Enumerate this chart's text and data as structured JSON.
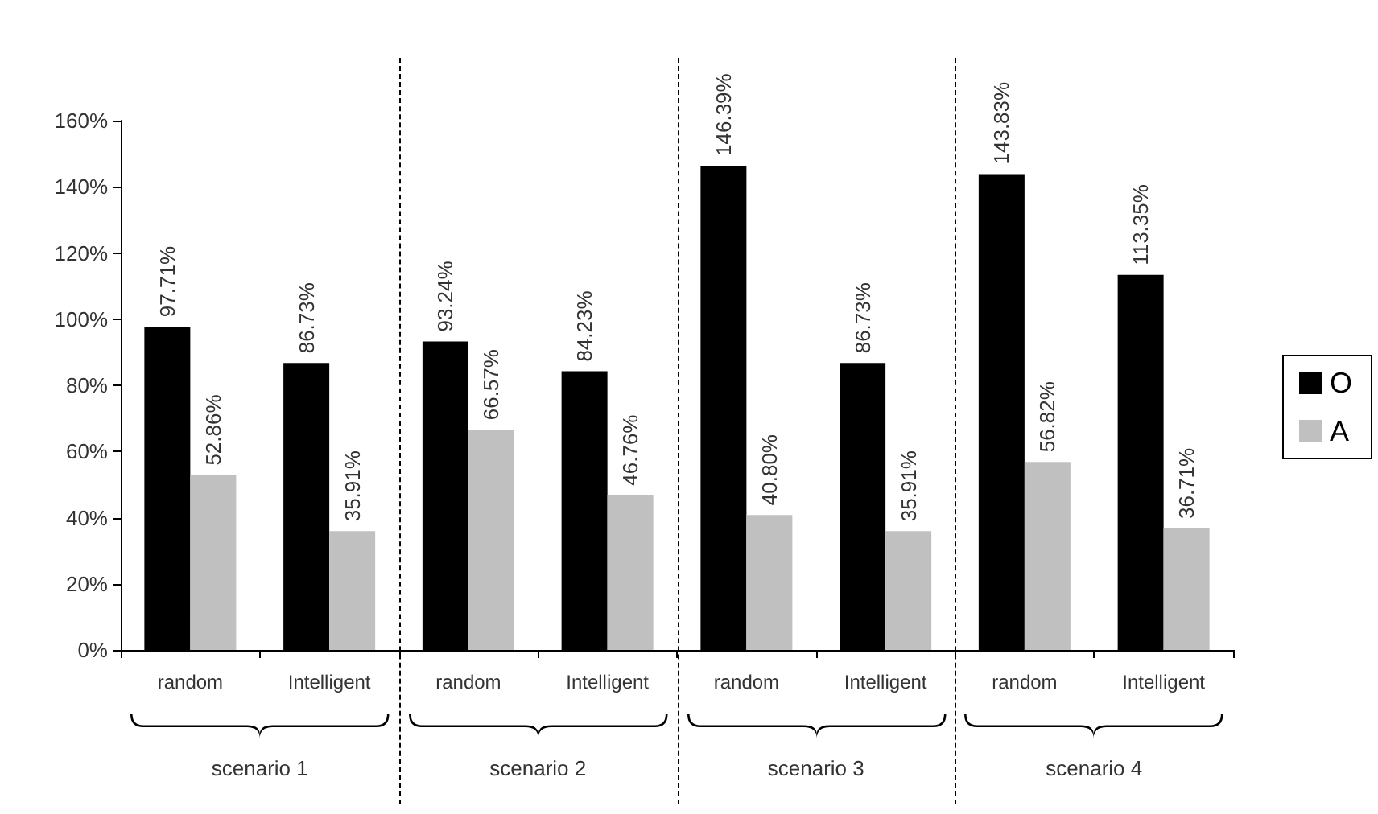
{
  "chart_data": {
    "type": "bar",
    "categories": [
      "random",
      "Intelligent",
      "random",
      "Intelligent",
      "random",
      "Intelligent",
      "random",
      "Intelligent"
    ],
    "series": [
      {
        "name": "O",
        "color": "#000000",
        "values": [
          97.71,
          86.73,
          93.24,
          84.23,
          146.39,
          86.73,
          143.83,
          113.35
        ],
        "value_labels": [
          "97.71%",
          "86.73%",
          "93.24%",
          "84.23%",
          "146.39%",
          "86.73%",
          "143.83%",
          "113.35%"
        ]
      },
      {
        "name": "A",
        "color": "#c0c0c0",
        "values": [
          52.86,
          35.91,
          66.57,
          46.76,
          40.8,
          35.91,
          56.82,
          36.71
        ],
        "value_labels": [
          "52.86%",
          "35.91%",
          "66.57%",
          "46.76%",
          "40.80%",
          "35.91%",
          "56.82%",
          "36.71%"
        ]
      }
    ],
    "ylim": [
      0,
      160
    ],
    "yticks": [
      {
        "value": 0,
        "label": "0%"
      },
      {
        "value": 20,
        "label": "20%"
      },
      {
        "value": 40,
        "label": "40%"
      },
      {
        "value": 60,
        "label": "60%"
      },
      {
        "value": 80,
        "label": "80%"
      },
      {
        "value": 100,
        "label": "100%"
      },
      {
        "value": 120,
        "label": "120%"
      },
      {
        "value": 140,
        "label": "140%"
      },
      {
        "value": 160,
        "label": "160%"
      }
    ],
    "annotations": [
      "scenario 1",
      "scenario 2",
      "scenario 3",
      "scenario 4"
    ],
    "grid": false,
    "legend": "right"
  }
}
